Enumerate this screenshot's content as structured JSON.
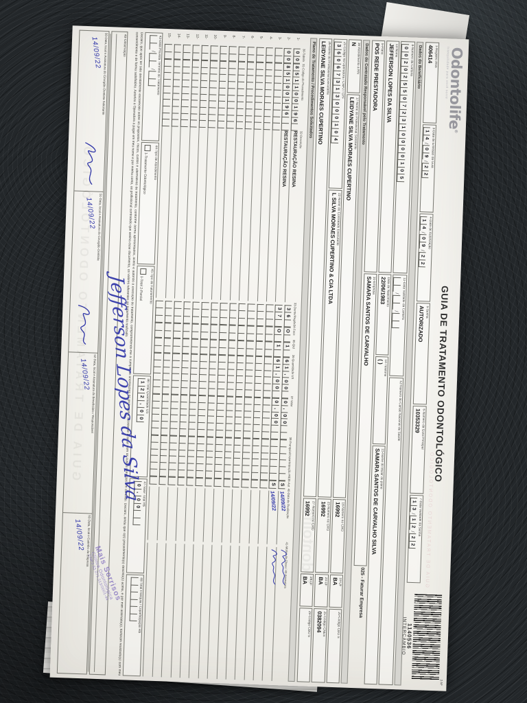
{
  "brand": {
    "name": "Odontolife",
    "reg": "®",
    "tagline": "tranquilidade para você sorrir"
  },
  "title": "GUIA DE TRATAMENTO ODONTOLÓGICO",
  "barcode": {
    "corner_label": "2-Nº",
    "number": "1140536",
    "kind": "INTERCÂMBIO"
  },
  "header": {
    "registro_ans": {
      "label": "1-Registro ANS",
      "value": "406414"
    },
    "data_emissao": {
      "label": "3-Data de Emissão da Guia",
      "value": "14/09/22"
    },
    "data_autorizacao": {
      "label": "4-Data de Autorização",
      "value": "14/09/22"
    },
    "senha": {
      "label": "5-Senha",
      "value": "AUTORIZADO"
    },
    "numero_guia_principal": {
      "label": "6-Número da Guia Principal",
      "value": "10353329"
    },
    "validade_senha": {
      "label": "7-Data Validade da Senha",
      "value": "13/12/22"
    }
  },
  "beneficiario": {
    "section_title": "Dados do Beneficiário",
    "numero_carteira": {
      "label": "8-Número da Carteira",
      "value": "0020255072310000105"
    },
    "validade_carteira": {
      "label": "11-Data Validade da Carteira",
      "value": ""
    },
    "cartao_nacional": {
      "label": "12-Número do Cartão Nacional de Saúde",
      "value": ""
    },
    "nome": {
      "label": "13-Nome",
      "value": "JEFFERSON LOPES DA SILVA"
    },
    "nascimento": {
      "label": "Data de Nascimento",
      "value": "22/06/1983"
    },
    "telefone": {
      "label": "14-Telefone",
      "value": "(        )"
    },
    "titular": {
      "label": "15-Nome do titular do plano",
      "value": "SAMARA SANTOS DE CARVALHO SILVA"
    },
    "faturar_nota": "025 - Faturar Empresa",
    "plano": {
      "label": "9-Plano",
      "value": "POS REDE PRESTADORA"
    },
    "empresa": {
      "label": "10-Empresa",
      "value": "SAMARA SANTOS DE CARVALHO"
    }
  },
  "contratado": {
    "section_title": "Dados do Contratado Responsável pelo Tratamento",
    "rn": {
      "label": "16-Atendimento a RN",
      "value": "N"
    },
    "solicitante": {
      "label": "17-Nome do Profissional Solicitante",
      "value": "LEIDYANE SILVA MORAES CUPERTINO"
    },
    "cro18": {
      "label": "18-Número no CRO",
      "value": "16992"
    },
    "uf19": {
      "label": "19-UF",
      "value": "BA"
    },
    "cbo20": {
      "label": "20-Código CBO S",
      "value": ""
    },
    "codigo_operadora": {
      "label": "21-Código na Operadora / CNPJ / CPF",
      "value": "36067313000104"
    },
    "contratado_executante": {
      "label": "22-Nome do Contratado Executante",
      "value": "L SILVA MORAES CUPERTINO & CIA LTDA"
    },
    "cro23": {
      "label": "23-Número no CRO",
      "value": "16992"
    },
    "uf24": {
      "label": "24-UF",
      "value": "BA"
    },
    "cnes25": {
      "label": "25-Código CNES",
      "value": "0382094"
    },
    "profissional_executante": {
      "label": "26-Nome do Profissional Executante",
      "value": "LEIDYANE SILVA MORAES CUPERTINO"
    },
    "cro27": {
      "label": "27-Número no CRO",
      "value": "16992"
    },
    "uf28": {
      "label": "28-UF",
      "value": "BA"
    },
    "cbo29": {
      "label": "29-Código CBO S",
      "value": ""
    }
  },
  "tratamento": {
    "section_title": "Plano de Tratamento / Procedimentos Solicitados",
    "columns": [
      "30-Tabela",
      "31-Código do Procedimento",
      "32-Descrição",
      "33-Dente/Região",
      "34-Face",
      "35-Qtd",
      "36-Quantidade US",
      "37-Valor",
      "38-Franquia/Coparticipação R$",
      "39-Aut",
      "40-Data de Realização",
      "41-Motivo da Glosa / 42-Assinatura"
    ],
    "rows": [
      {
        "num": "1-",
        "tabela": "00",
        "codigo": "851100196",
        "descricao": "RESTAURAÇÃO RESINA",
        "dente": "36",
        "face": "O",
        "qtd": "1",
        "qtde_us": "61,00",
        "valor": "0,00",
        "franquia": "",
        "aut": "S",
        "data_realizacao": "14/09/22",
        "assinado": true
      },
      {
        "num": "2-",
        "tabela": "00",
        "codigo": "85100196",
        "descricao": "RESTAURAÇÃO RESINA",
        "dente": "37",
        "face": "O",
        "qtd": "1",
        "qtde_us": "61,00",
        "valor": "0,00",
        "franquia": "",
        "aut": "S",
        "data_realizacao": "14/09/22",
        "assinado": true
      },
      {
        "num": "3-"
      },
      {
        "num": "4-"
      },
      {
        "num": "5-"
      },
      {
        "num": "6-"
      },
      {
        "num": "7-"
      },
      {
        "num": "8-"
      },
      {
        "num": "9-"
      },
      {
        "num": "10-"
      },
      {
        "num": "11-"
      },
      {
        "num": "12-"
      },
      {
        "num": "13-"
      },
      {
        "num": "14-"
      },
      {
        "num": "15-"
      }
    ]
  },
  "totais": {
    "data_prevista": {
      "label": "43-Data Prevista Término do Tratamento",
      "value": ""
    },
    "tipo_atendimento": {
      "label": "44-Tipo de Atendimento",
      "options": "1-Tratamento Odontológico"
    },
    "tipo_faturamento": {
      "label": "45-Tipo de Faturamento",
      "options": "1-Total   2-Parcial"
    },
    "total_us": {
      "label": "46-Total Quantidade US",
      "value": "122,00"
    },
    "valor_total": {
      "label": "47-Valor Total R$",
      "value": "0,00"
    },
    "total_franquia": {
      "label": "48-Total Franquia / Coparticipação R$",
      "value": ""
    }
  },
  "declaracao": "Declaro, que após ter sido devidamente esclarecido sobre os propósitos, riscos, custos e alternativas de tratamento, conforme acima apresentados, aceito e autorizo a execução do tratamento, comprometendo-me a cumprir as orientações do profissional assistente e arcar com os custos previstos em contrato. Declaro, ainda que o(s) procedimento(s) descrito(s) acima, e por mim assinado(s), foi/foram realizado(s) com meu consentimento e de forma satisfatória. Autorizo a Operadora a pagar em meu nome e por minha conta, ao profissional contratado que assina esse documento, os valores referentes ao tratamento realizado.",
  "observacao": {
    "label": "49-Observação"
  },
  "assinaturas": [
    {
      "label": "50-Data, local e Assinatura do Cirurgião-Dentista Solicitante",
      "date": "14/09/22"
    },
    {
      "label": "51-Data, local e Assinatura do Cirurgião-Dentista",
      "date": "14/09/22"
    },
    {
      "label": "52-Data, local e Assinatura do Beneficiário / Responsável",
      "date": "14/09/22"
    },
    {
      "label": "53-Data, local e Carimbo da Empresa",
      "date": "14/09/22"
    }
  ],
  "manuscrito": {
    "assinatura_beneficiario": "Jefferson Lopes da Silva",
    "ink_color": "#2f35a8"
  },
  "carimbo": {
    "line1": "Mais Sorrisos",
    "line2": "Clínica Odontológica",
    "line3": "CNPJ 33.071.313/0001-44"
  }
}
